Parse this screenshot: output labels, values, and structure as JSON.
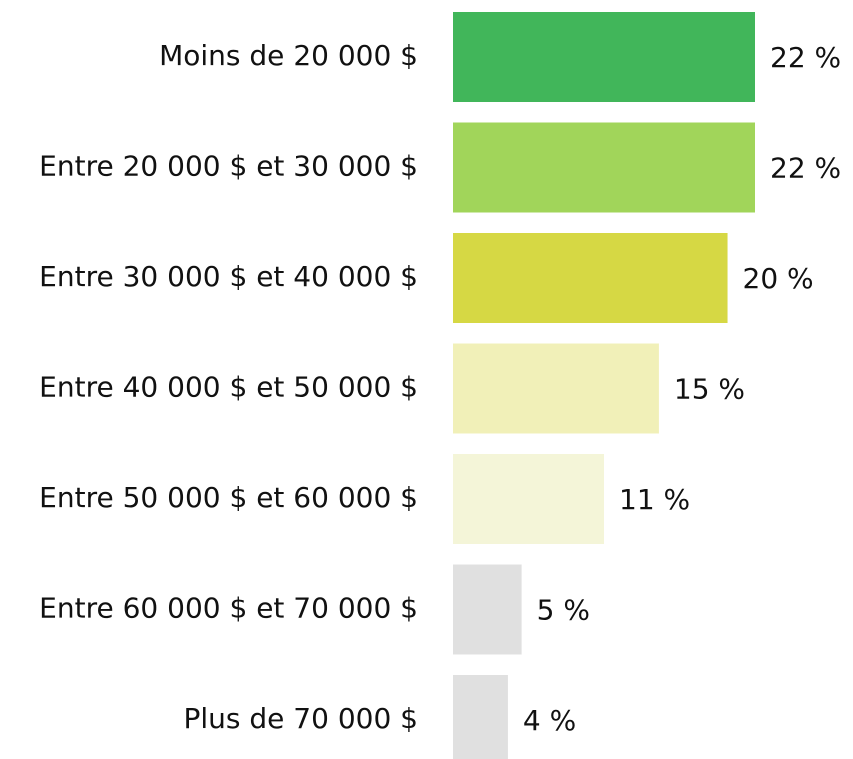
{
  "chart_data": {
    "type": "bar",
    "orientation": "horizontal",
    "categories": [
      "Moins de 20 000 $",
      "Entre 20 000 $ et 30 000 $",
      "Entre 30 000 $ et 40 000 $",
      "Entre 40 000 $ et 50 000 $",
      "Entre 50 000 $ et 60 000 $",
      "Entre 60 000 $ et 70 000 $",
      "Plus de 70 000 $"
    ],
    "values": [
      22,
      22,
      20,
      15,
      11,
      5,
      4
    ],
    "value_labels": [
      "22 %",
      "22 %",
      "20 %",
      "15 %",
      "11 %",
      "5 %",
      "4 %"
    ],
    "colors": [
      "#41b65a",
      "#a1d55a",
      "#d6d844",
      "#f1f0b8",
      "#f4f5d8",
      "#e0e0e0",
      "#e0e0e0"
    ]
  }
}
